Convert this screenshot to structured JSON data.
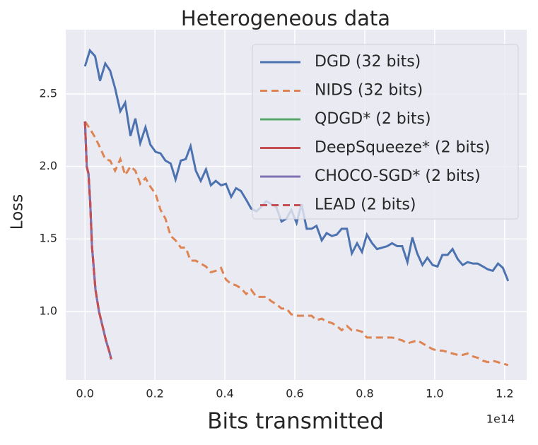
{
  "chart_data": {
    "type": "line",
    "title": "Heterogeneous data",
    "x_label": "Bits transmitted",
    "y_label": "Loss",
    "x_offset_label": "1e14",
    "xlim": [
      -0.055,
      1.263
    ],
    "ylim": [
      0.527,
      2.943
    ],
    "xticks": [
      {
        "value": 0,
        "label": "0.0"
      },
      0.2,
      0.4,
      0.6,
      0.8,
      {
        "value": 1,
        "label": "1.0"
      },
      1.2
    ],
    "yticks": [
      {
        "value": 1,
        "label": "1.0"
      },
      1.5,
      {
        "value": 2,
        "label": "2.0"
      },
      2.5
    ],
    "grid": true,
    "legend": "upper right",
    "x": [
      0,
      0.014,
      0.029,
      0.043,
      0.058,
      0.072,
      0.086,
      0.101,
      0.115,
      0.13,
      0.144,
      0.158,
      0.173,
      0.187,
      0.202,
      0.216,
      0.23,
      0.245,
      0.259,
      0.274,
      0.288,
      0.302,
      0.317,
      0.331,
      0.346,
      0.36,
      0.374,
      0.389,
      0.403,
      0.418,
      0.432,
      0.446,
      0.461,
      0.475,
      0.49,
      0.504,
      0.518,
      0.533,
      0.547,
      0.562,
      0.576,
      0.59,
      0.605,
      0.619,
      0.634,
      0.648,
      0.662,
      0.677,
      0.691,
      0.706,
      0.72,
      0.734,
      0.749,
      0.763,
      0.778,
      0.792,
      0.806,
      0.821,
      0.835,
      0.85,
      0.864,
      0.878,
      0.893,
      0.907,
      0.922,
      0.936,
      0.95,
      0.965,
      0.979,
      0.994,
      1.008,
      1.022,
      1.037,
      1.051,
      1.066,
      1.08,
      1.094,
      1.109,
      1.123,
      1.138,
      1.152,
      1.166,
      1.181,
      1.195,
      1.21
    ],
    "series": [
      {
        "name": "DGD (32 bits)",
        "color": "#4c72b0",
        "dashed": false,
        "values": [
          2.69,
          2.8,
          2.76,
          2.59,
          2.71,
          2.66,
          2.54,
          2.38,
          2.44,
          2.21,
          2.33,
          2.16,
          2.27,
          2.15,
          2.1,
          2.09,
          2.04,
          2.02,
          1.91,
          2.04,
          2.05,
          2.14,
          1.97,
          1.9,
          1.98,
          1.87,
          1.9,
          1.87,
          1.88,
          1.79,
          1.85,
          1.83,
          1.77,
          1.71,
          1.69,
          1.72,
          1.76,
          1.74,
          1.72,
          1.62,
          1.64,
          1.7,
          1.61,
          1.74,
          1.57,
          1.57,
          1.59,
          1.49,
          1.54,
          1.52,
          1.53,
          1.57,
          1.57,
          1.4,
          1.47,
          1.41,
          1.53,
          1.47,
          1.43,
          1.44,
          1.45,
          1.47,
          1.45,
          1.45,
          1.34,
          1.51,
          1.4,
          1.32,
          1.37,
          1.32,
          1.31,
          1.39,
          1.39,
          1.43,
          1.36,
          1.32,
          1.34,
          1.33,
          1.33,
          1.31,
          1.29,
          1.28,
          1.33,
          1.3,
          1.21
        ]
      },
      {
        "name": "NIDS (32 bits)",
        "color": "#dd8452",
        "dashed": true,
        "values": [
          2.31,
          2.26,
          2.2,
          2.13,
          2.05,
          2.04,
          1.97,
          2.05,
          1.94,
          2.0,
          1.97,
          1.88,
          1.92,
          1.86,
          1.81,
          1.7,
          1.64,
          1.52,
          1.49,
          1.44,
          1.44,
          1.35,
          1.35,
          1.33,
          1.31,
          1.27,
          1.28,
          1.3,
          1.22,
          1.19,
          1.18,
          1.16,
          1.12,
          1.15,
          1.1,
          1.1,
          1.1,
          1.07,
          1.05,
          1.02,
          1.02,
          0.98,
          0.97,
          0.97,
          0.97,
          0.97,
          0.94,
          0.95,
          0.93,
          0.92,
          0.9,
          0.87,
          0.9,
          0.87,
          0.87,
          0.86,
          0.82,
          0.82,
          0.82,
          0.82,
          0.82,
          0.82,
          0.81,
          0.8,
          0.78,
          0.79,
          0.8,
          0.78,
          0.76,
          0.74,
          0.73,
          0.73,
          0.72,
          0.71,
          0.7,
          0.7,
          0.71,
          0.69,
          0.68,
          0.66,
          0.65,
          0.66,
          0.65,
          0.64,
          0.63
        ]
      },
      {
        "name": "QDGD* (2 bits)",
        "color": "#55a868",
        "dashed": false,
        "x": [
          0,
          0.005,
          0.01,
          0.015,
          0.02,
          0.025,
          0.03,
          0.04,
          0.05,
          0.06,
          0.07,
          0.075
        ],
        "values": [
          2.31,
          2.0,
          1.95,
          1.75,
          1.45,
          1.3,
          1.15,
          1.0,
          0.9,
          0.8,
          0.72,
          0.67
        ]
      },
      {
        "name": "DeepSqueeze* (2 bits)",
        "color": "#c44e52",
        "dashed": false,
        "x": [
          0,
          0.005,
          0.01,
          0.015,
          0.02,
          0.025,
          0.03,
          0.04,
          0.05,
          0.06,
          0.07,
          0.075
        ],
        "values": [
          2.31,
          2.0,
          1.95,
          1.75,
          1.45,
          1.3,
          1.15,
          1.0,
          0.9,
          0.8,
          0.72,
          0.67
        ]
      },
      {
        "name": "CHOCO-SGD* (2 bits)",
        "color": "#8172b3",
        "dashed": false,
        "x": [
          0,
          0.005,
          0.01,
          0.015,
          0.02,
          0.025,
          0.03,
          0.04,
          0.05,
          0.06,
          0.07,
          0.075
        ],
        "values": [
          2.31,
          2.0,
          1.95,
          1.75,
          1.45,
          1.3,
          1.15,
          1.0,
          0.9,
          0.8,
          0.72,
          0.67
        ]
      },
      {
        "name": "LEAD (2 bits)",
        "color": "#c44e52",
        "dashed": true,
        "x": [
          0,
          0.005,
          0.01,
          0.015,
          0.02,
          0.025,
          0.03,
          0.04,
          0.05,
          0.06,
          0.07,
          0.075
        ],
        "values": [
          2.31,
          2.0,
          1.95,
          1.75,
          1.45,
          1.3,
          1.15,
          1.0,
          0.9,
          0.8,
          0.72,
          0.67
        ]
      }
    ]
  }
}
